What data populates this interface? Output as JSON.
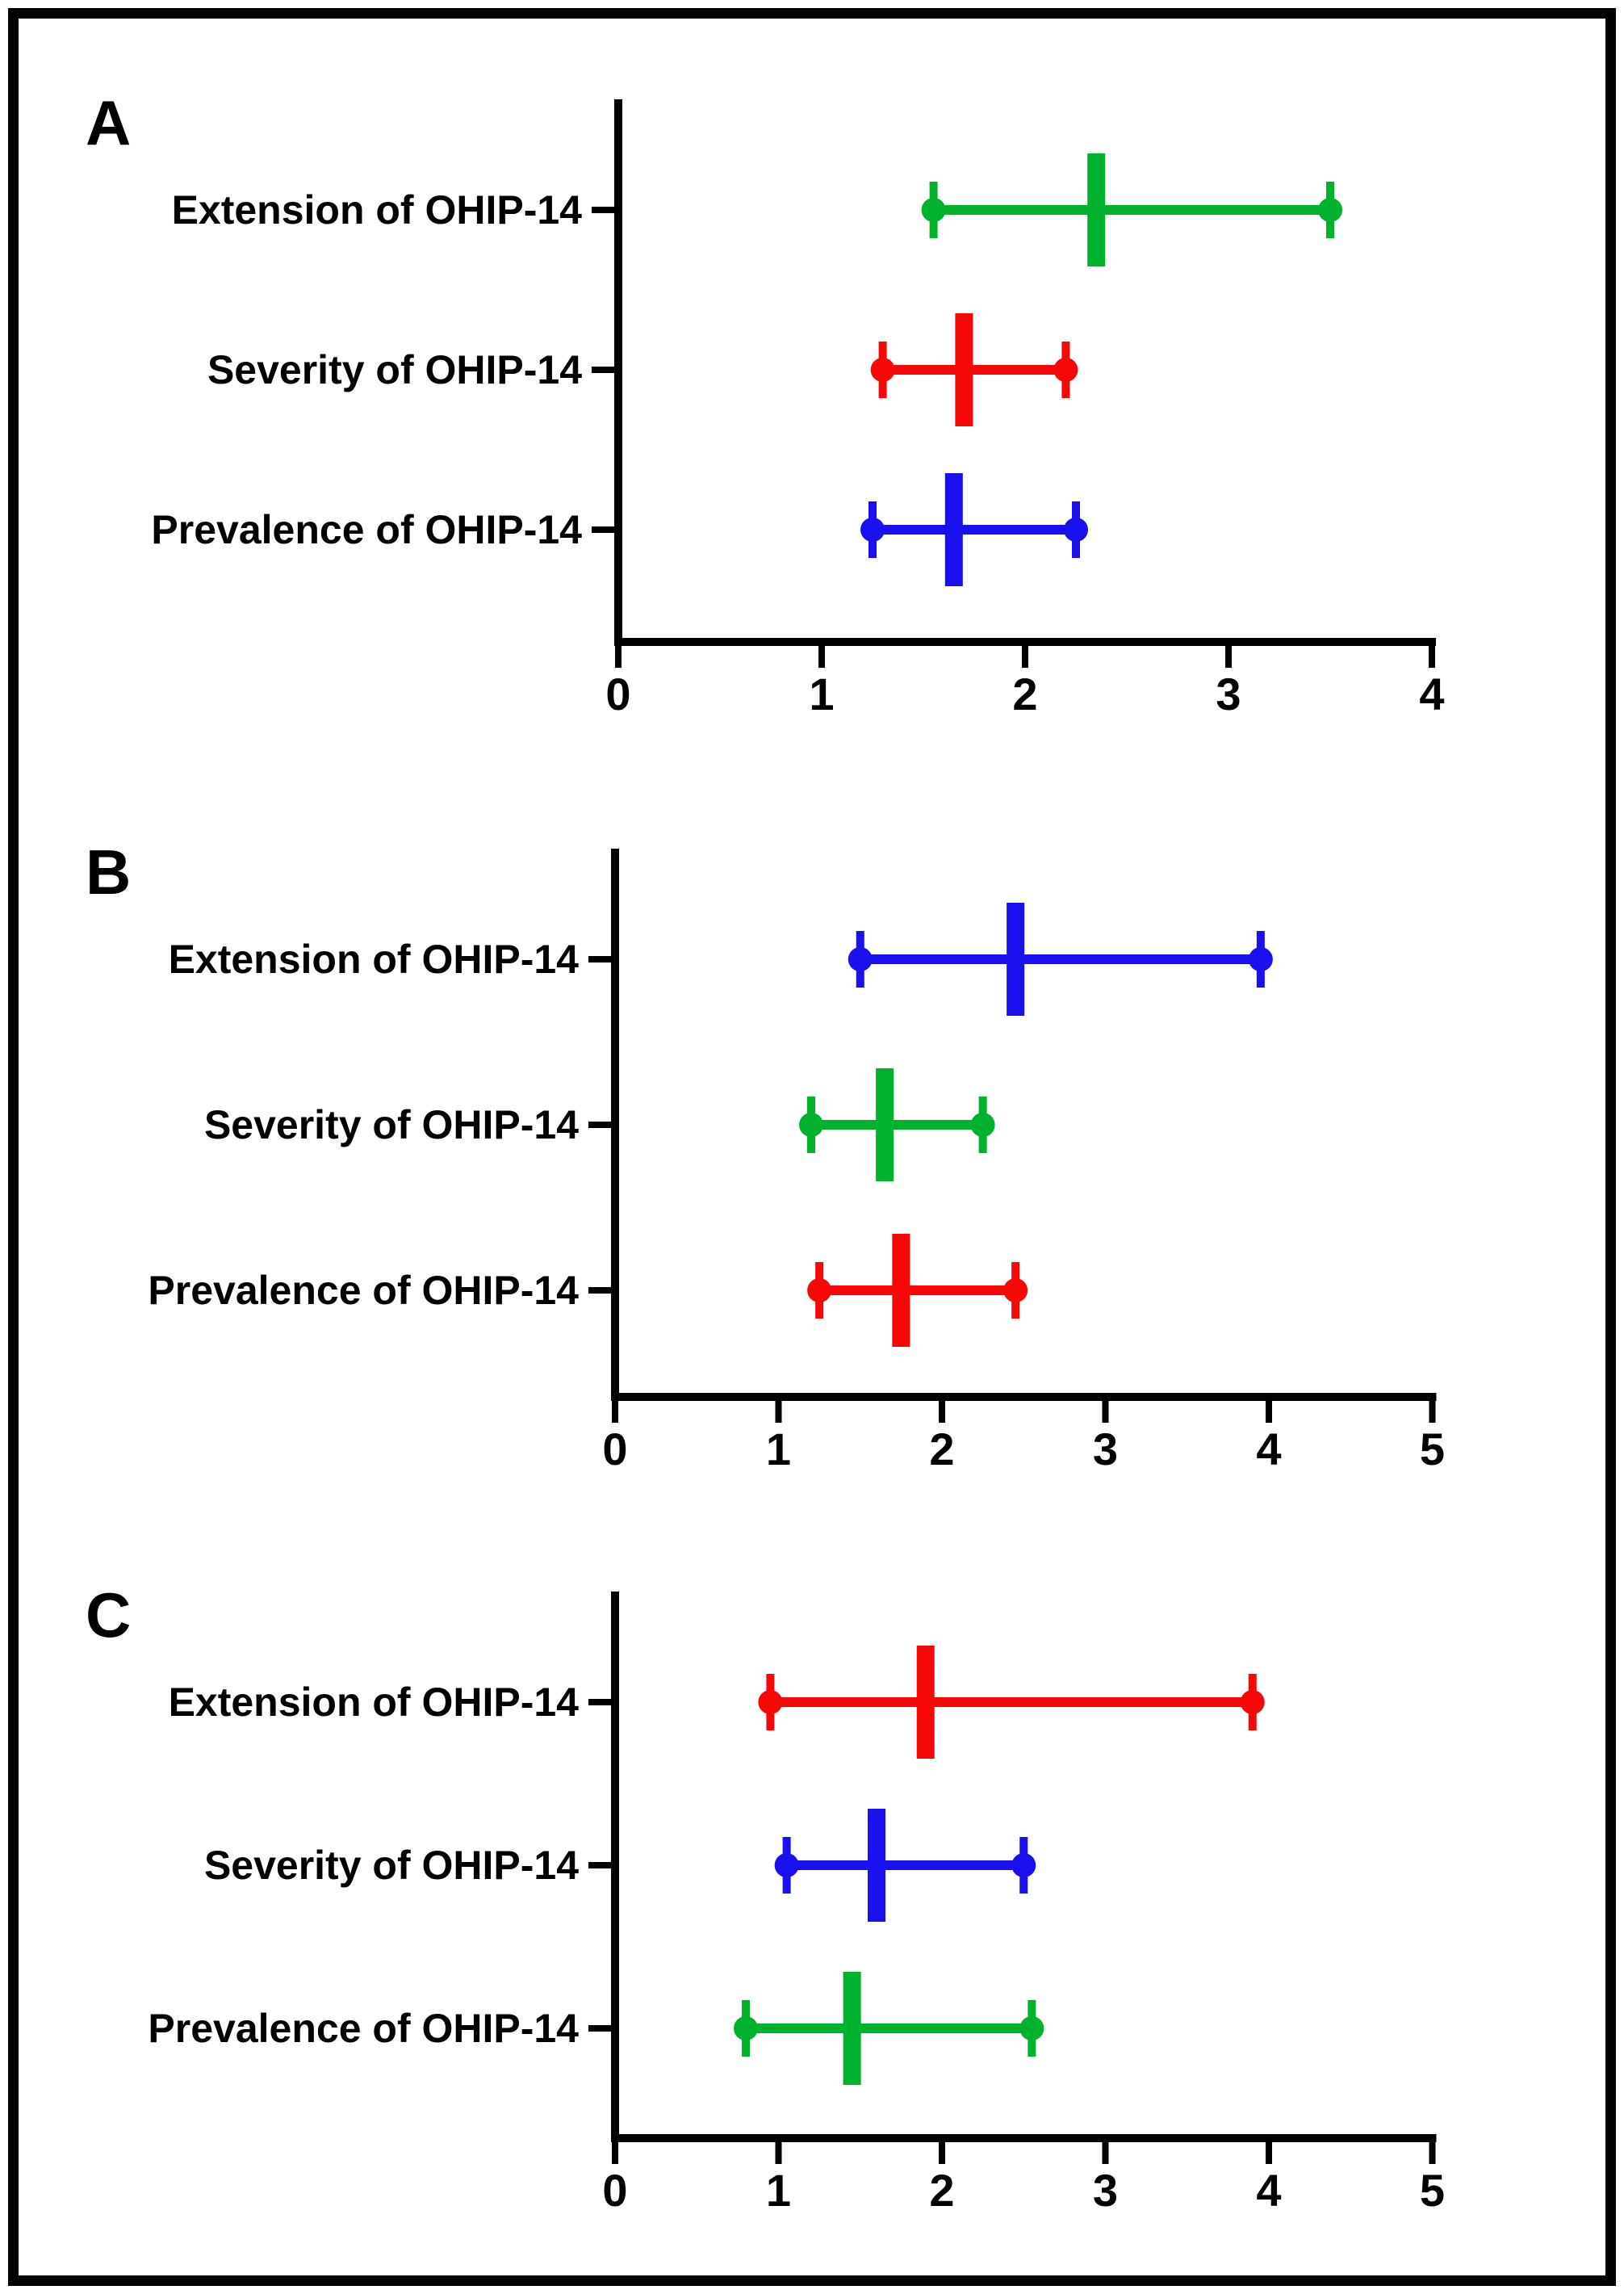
{
  "figure": {
    "kind": "three-panel forest / error-bar figure",
    "background": "#ffffff",
    "border_color": "#000000",
    "text_color": "#000000",
    "axis_color": "#000000"
  },
  "chart_data": [
    {
      "type": "errorbar",
      "panel": "A",
      "orientation": "horizontal",
      "xlabel": "",
      "ylabel": "",
      "xlim": [
        0,
        4
      ],
      "xticks": [
        0,
        1,
        2,
        3,
        4
      ],
      "grid": false,
      "legend": "none",
      "categories": [
        "Extension of OHIP-14",
        "Severity of OHIP-14",
        "Prevalence of OHIP-14"
      ],
      "series": [
        {
          "name": "Extension of OHIP-14",
          "color": "#00b22d",
          "low": 1.55,
          "mid": 2.35,
          "high": 3.5
        },
        {
          "name": "Severity of OHIP-14",
          "color": "#f70808",
          "low": 1.3,
          "mid": 1.7,
          "high": 2.2
        },
        {
          "name": "Prevalence of OHIP-14",
          "color": "#1a10ee",
          "low": 1.25,
          "mid": 1.65,
          "high": 2.25
        }
      ]
    },
    {
      "type": "errorbar",
      "panel": "B",
      "orientation": "horizontal",
      "xlabel": "",
      "ylabel": "",
      "xlim": [
        0,
        5
      ],
      "xticks": [
        0,
        1,
        2,
        3,
        4,
        5
      ],
      "grid": false,
      "legend": "none",
      "categories": [
        "Extension of OHIP-14",
        "Severity of OHIP-14",
        "Prevalence of OHIP-14"
      ],
      "series": [
        {
          "name": "Extension of OHIP-14",
          "color": "#1a10ee",
          "low": 1.5,
          "mid": 2.45,
          "high": 3.95
        },
        {
          "name": "Severity of OHIP-14",
          "color": "#00b22d",
          "low": 1.2,
          "mid": 1.65,
          "high": 2.25
        },
        {
          "name": "Prevalence of OHIP-14",
          "color": "#f70808",
          "low": 1.25,
          "mid": 1.75,
          "high": 2.45
        }
      ]
    },
    {
      "type": "errorbar",
      "panel": "C",
      "orientation": "horizontal",
      "xlabel": "",
      "ylabel": "",
      "xlim": [
        0,
        5
      ],
      "xticks": [
        0,
        1,
        2,
        3,
        4,
        5
      ],
      "grid": false,
      "legend": "none",
      "categories": [
        "Extension of OHIP-14",
        "Severity of OHIP-14",
        "Prevalence of OHIP-14"
      ],
      "series": [
        {
          "name": "Extension of OHIP-14",
          "color": "#f70808",
          "low": 0.95,
          "mid": 1.9,
          "high": 3.9
        },
        {
          "name": "Severity of OHIP-14",
          "color": "#1a10ee",
          "low": 1.05,
          "mid": 1.6,
          "high": 2.5
        },
        {
          "name": "Prevalence of OHIP-14",
          "color": "#00b22d",
          "low": 0.8,
          "mid": 1.45,
          "high": 2.55
        }
      ]
    }
  ]
}
